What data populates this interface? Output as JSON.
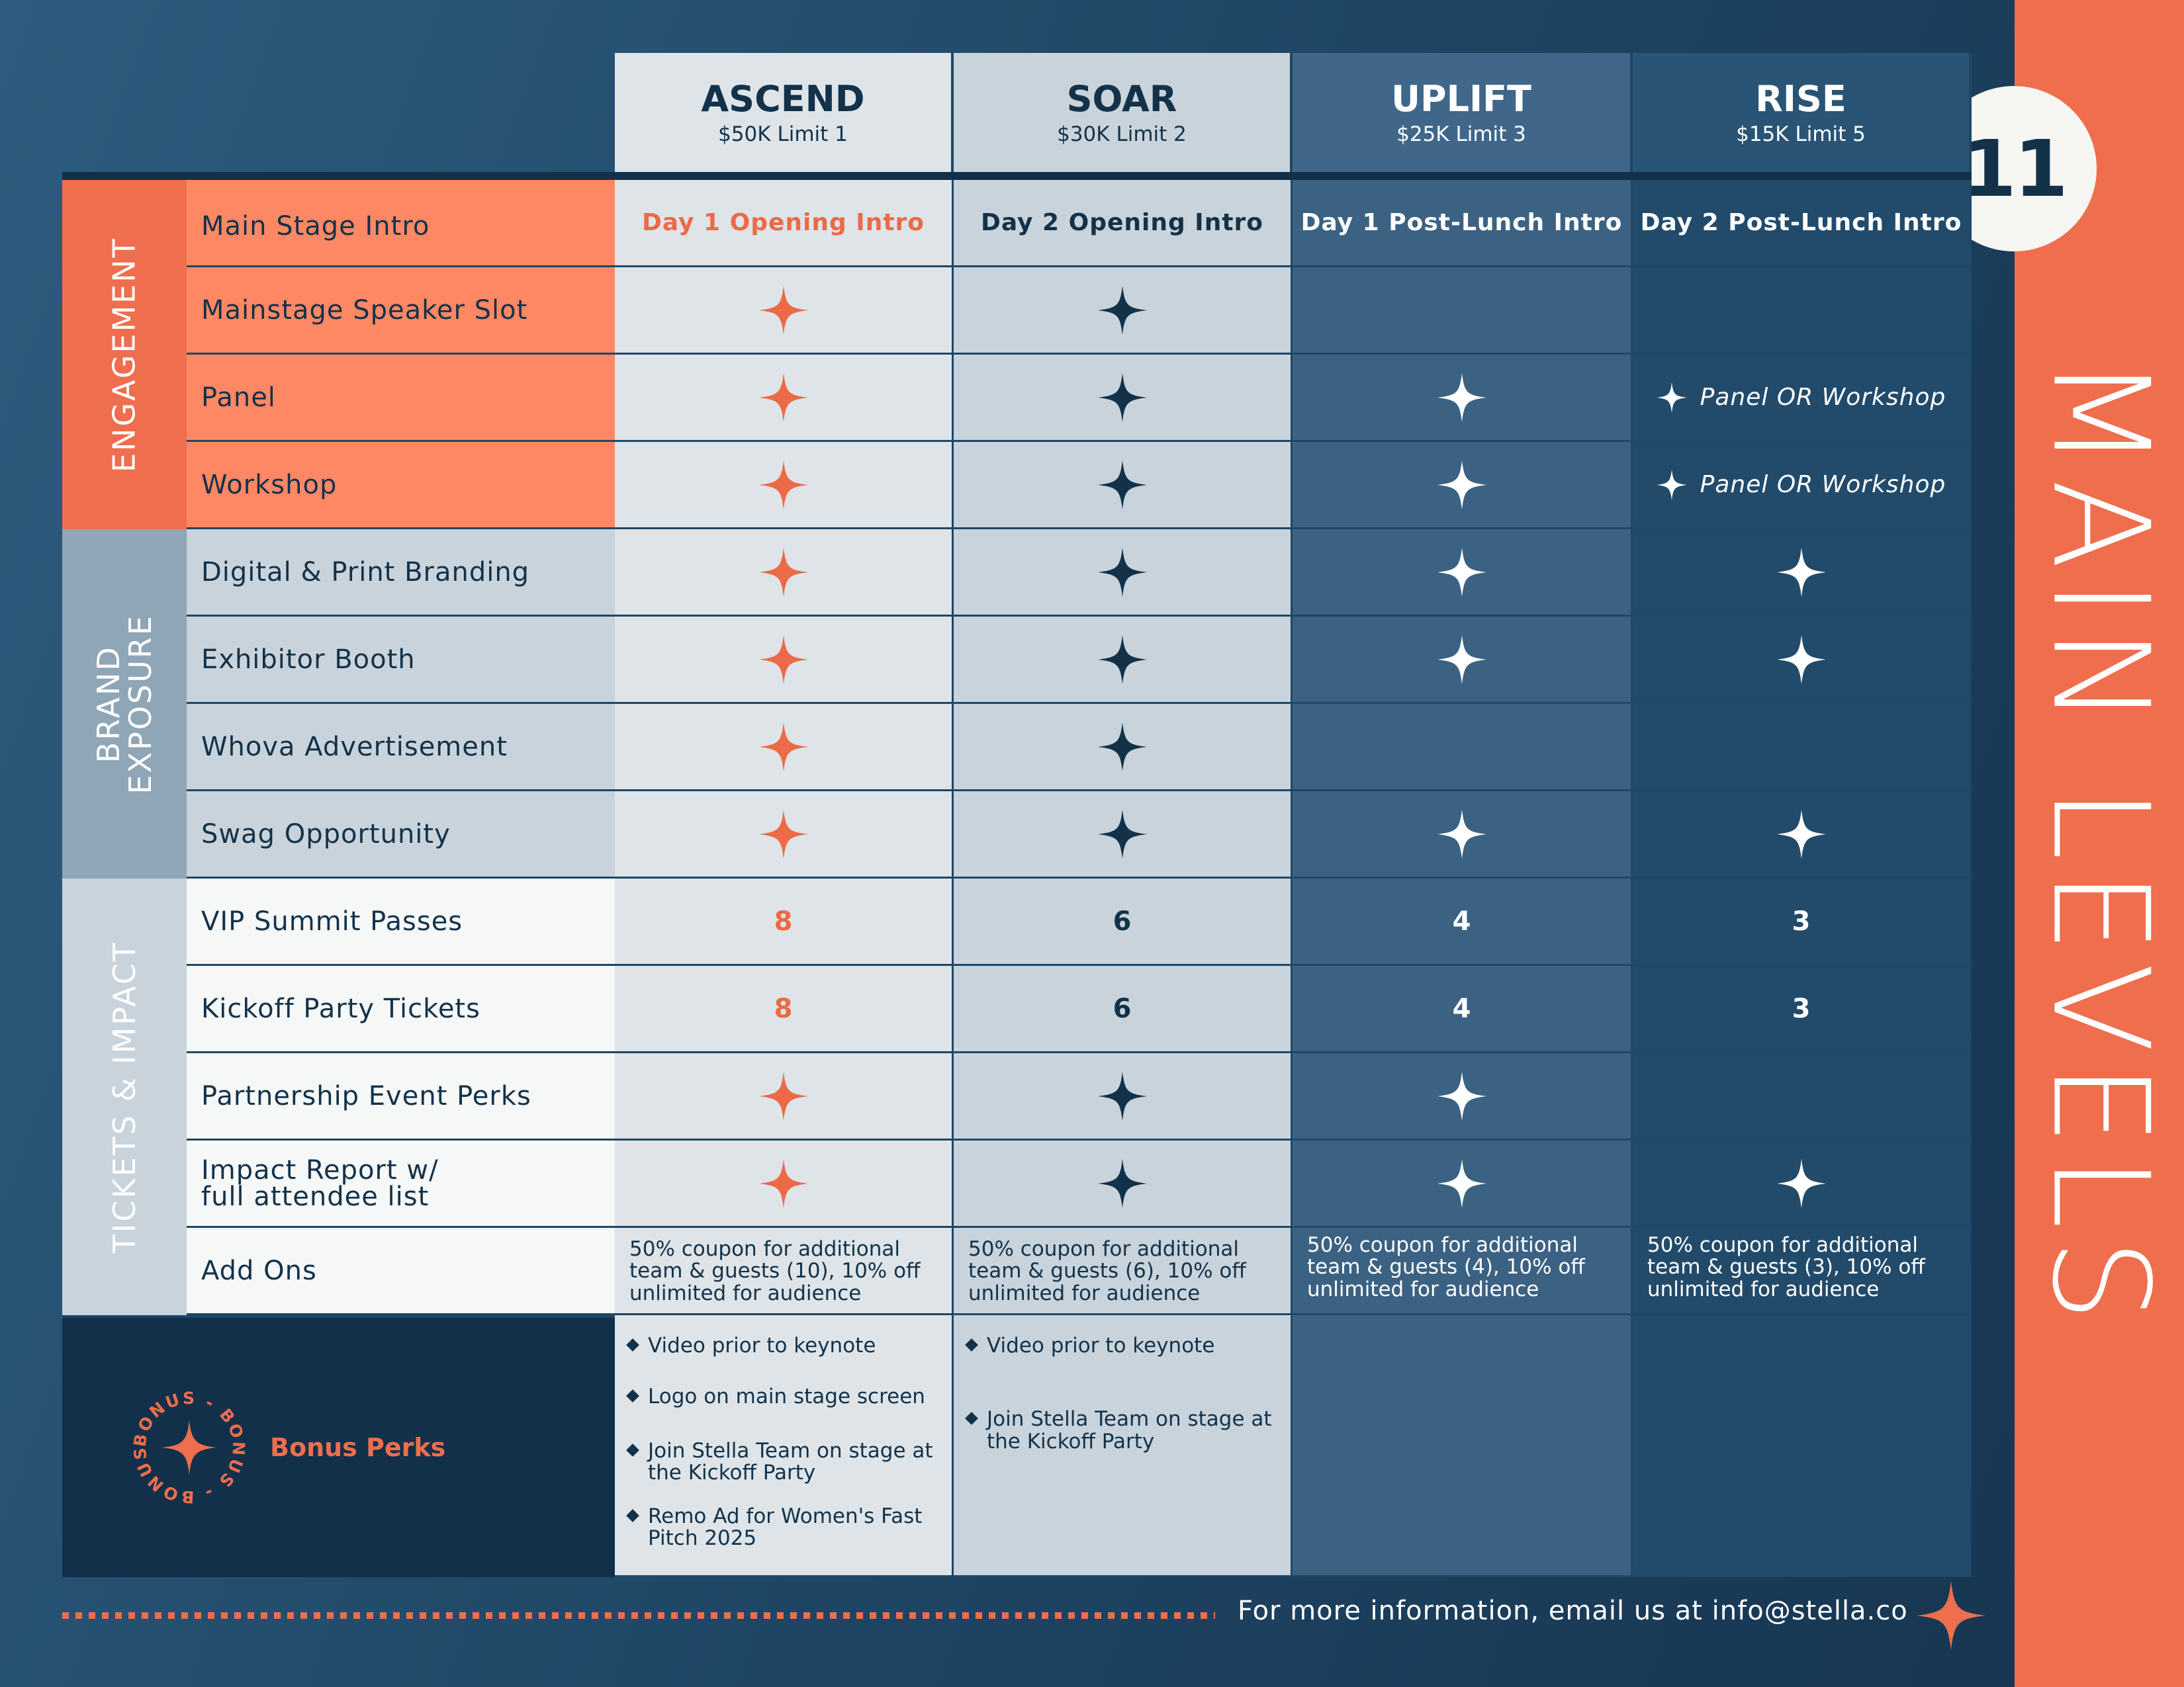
{
  "page": {
    "title": "MAIN LEVELS",
    "page_number": "11",
    "footer": "For more information, email us at info@stella.co",
    "colors": {
      "accent": "#ef6e4d",
      "navy": "#13324a",
      "tier1": "#dee4e8",
      "tier2": "#c8d3db",
      "tier3": "#3b6282",
      "tier4": "#224b6b"
    }
  },
  "tiers": [
    {
      "name": "ASCEND",
      "sub": "$50K Limit 1"
    },
    {
      "name": "SOAR",
      "sub": "$30K Limit 2"
    },
    {
      "name": "UPLIFT",
      "sub": "$25K Limit 3"
    },
    {
      "name": "RISE",
      "sub": "$15K Limit 5"
    }
  ],
  "categories": {
    "engagement": "ENGAGEMENT",
    "brand_l1": "BRAND",
    "brand_l2": "EXPOSURE",
    "tickets": "TICKETS & IMPACT"
  },
  "rows": {
    "main_stage_intro": {
      "label": "Main Stage Intro",
      "values": [
        "Day 1 Opening Intro",
        "Day 2 Opening Intro",
        "Day 1 Post-Lunch Intro",
        "Day 2 Post-Lunch Intro"
      ]
    },
    "mainstage_speaker": {
      "label": "Mainstage Speaker Slot"
    },
    "panel": {
      "label": "Panel",
      "rise_text": "Panel OR Workshop"
    },
    "workshop": {
      "label": "Workshop",
      "rise_text": "Panel OR Workshop"
    },
    "digital_print": {
      "label": "Digital & Print Branding"
    },
    "exhibitor_booth": {
      "label": "Exhibitor Booth"
    },
    "whova_ad": {
      "label": "Whova Advertisement"
    },
    "swag": {
      "label": "Swag Opportunity"
    },
    "vip_passes": {
      "label": "VIP Summit Passes",
      "values": [
        "8",
        "6",
        "4",
        "3"
      ]
    },
    "kickoff_tickets": {
      "label": "Kickoff Party Tickets",
      "values": [
        "8",
        "6",
        "4",
        "3"
      ]
    },
    "partnership_perks": {
      "label": "Partnership Event Perks"
    },
    "impact_report": {
      "label_l1": "Impact Report w/",
      "label_l2": "full attendee list"
    },
    "add_ons": {
      "label": "Add Ons",
      "values": [
        "50% coupon for additional team & guests (10), 10% off unlimited for audience",
        "50% coupon for additional team & guests (6), 10% off unlimited for audience",
        "50% coupon for additional team & guests (4), 10% off unlimited for audience",
        "50% coupon for additional team & guests (3), 10% off unlimited for audience"
      ]
    }
  },
  "bonus": {
    "label": "Bonus Perks",
    "badge_text": "BONUS - BONUS - BONUS - ",
    "ascend": [
      "Video prior to keynote",
      "Logo on main stage screen",
      "Join Stella Team on stage at the Kickoff Party",
      "Remo Ad for Women's Fast Pitch 2025"
    ],
    "soar": [
      "Video prior to keynote",
      "Join Stella Team on stage at the Kickoff Party"
    ]
  }
}
